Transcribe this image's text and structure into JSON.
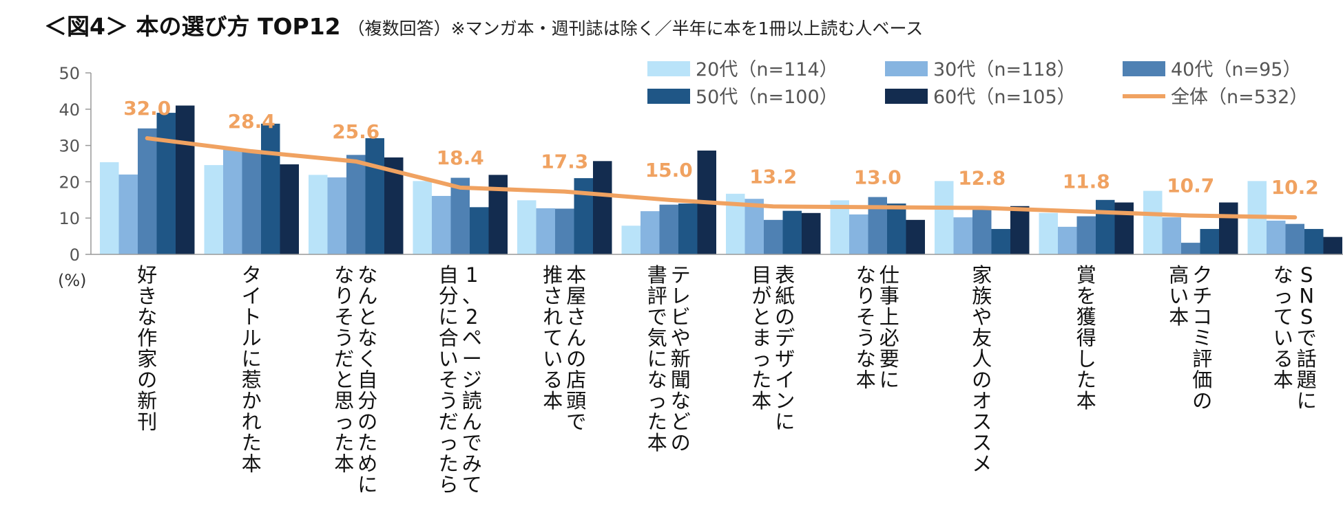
{
  "title": {
    "main": "＜図4＞ 本の選び方 TOP12",
    "sub": "（複数回答）※マンガ本・週刊誌は除く／半年に本を1冊以上読む人ベース"
  },
  "chart_data": {
    "type": "bar",
    "title": "＜図4＞ 本の選び方 TOP12",
    "ylabel": "(%)",
    "ylim": [
      0,
      50
    ],
    "yticks": [
      "0",
      "10",
      "20",
      "30",
      "40",
      "50"
    ],
    "categories": [
      [
        "好きな作家の新刊"
      ],
      [
        "タイトルに惹かれた本"
      ],
      [
        "なんとなく自分のために",
        "なりそうだと思った本"
      ],
      [
        "1、2ページ読んでみて",
        "自分に合いそうだったら"
      ],
      [
        "本屋さんの店頭で",
        "推されている本"
      ],
      [
        "テレビや新聞などの",
        "書評で気になった本"
      ],
      [
        "表紙のデザインに",
        "目がとまった本"
      ],
      [
        "仕事上必要に",
        "なりそうな本"
      ],
      [
        "家族や友人のオススメ"
      ],
      [
        "賞を獲得した本"
      ],
      [
        "クチコミ評価の",
        "高い本"
      ],
      [
        "SNSで話題に",
        "なっている本"
      ]
    ],
    "series": [
      {
        "name": "20代（n=114）",
        "color": "#B9E3F9",
        "values": [
          25.4,
          24.6,
          21.9,
          20.2,
          14.9,
          7.9,
          16.7,
          14.9,
          20.2,
          11.4,
          17.5,
          20.2
        ]
      },
      {
        "name": "30代（n=118）",
        "color": "#86B4E0",
        "values": [
          22.0,
          28.8,
          21.2,
          16.1,
          12.7,
          11.9,
          15.3,
          11.0,
          10.2,
          7.6,
          10.2,
          9.3
        ]
      },
      {
        "name": "40代（n=95）",
        "color": "#4F81B3",
        "values": [
          34.7,
          28.4,
          27.4,
          21.1,
          12.6,
          13.7,
          9.5,
          15.8,
          12.6,
          10.5,
          3.2,
          8.4
        ]
      },
      {
        "name": "50代（n=100）",
        "color": "#1F5686",
        "values": [
          39.0,
          36.0,
          32.0,
          13.0,
          21.0,
          14.0,
          12.0,
          14.0,
          7.0,
          15.0,
          7.0,
          7.0
        ]
      },
      {
        "name": "60代（n=105）",
        "color": "#132C4F",
        "values": [
          41.0,
          24.8,
          26.7,
          21.9,
          25.7,
          28.6,
          11.4,
          9.5,
          13.3,
          14.3,
          14.3,
          4.8
        ]
      }
    ],
    "line": {
      "name": "全体（n=532）",
      "color": "#F0A261",
      "values": [
        32.0,
        28.4,
        25.6,
        18.4,
        17.3,
        15.0,
        13.2,
        13.0,
        12.8,
        11.8,
        10.7,
        10.2
      ]
    },
    "data_labels": [
      "32.0",
      "28.4",
      "25.6",
      "18.4",
      "17.3",
      "15.0",
      "13.2",
      "13.0",
      "12.8",
      "11.8",
      "10.7",
      "10.2"
    ],
    "legend_position": "top-right"
  }
}
